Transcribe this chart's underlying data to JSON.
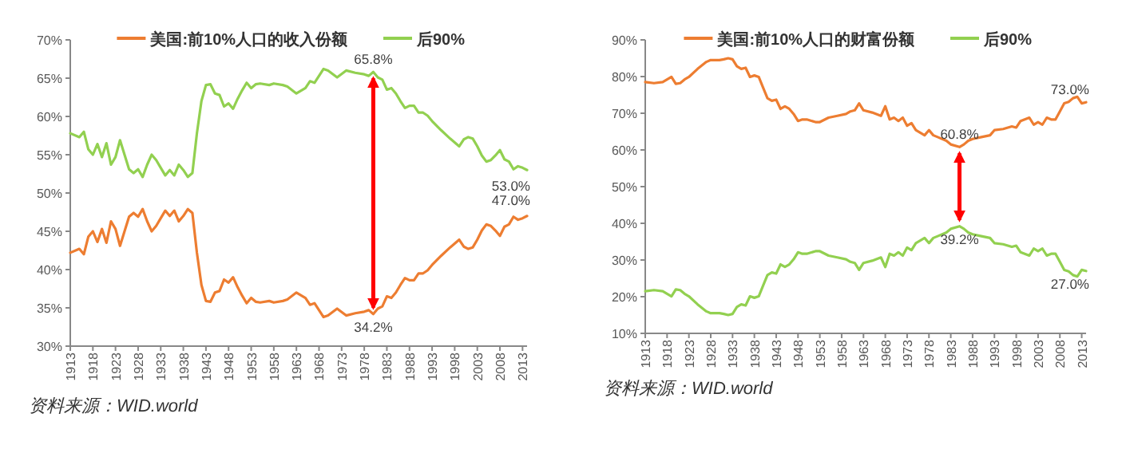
{
  "chart_data": [
    {
      "type": "line",
      "legend": "top",
      "xlim": [
        1913,
        2014
      ],
      "xticks": [
        1913,
        1918,
        1923,
        1928,
        1933,
        1938,
        1943,
        1948,
        1953,
        1958,
        1963,
        1968,
        1973,
        1978,
        1983,
        1988,
        1993,
        1998,
        2003,
        2008,
        2013
      ],
      "ylim": [
        30,
        70
      ],
      "yticks": [
        {
          "value": 30,
          "label": "30%"
        },
        {
          "value": 35,
          "label": "35%"
        },
        {
          "value": 40,
          "label": "40%"
        },
        {
          "value": 45,
          "label": "45%"
        },
        {
          "value": 50,
          "label": "50%"
        },
        {
          "value": 55,
          "label": "55%"
        },
        {
          "value": 60,
          "label": "60%"
        },
        {
          "value": 65,
          "label": "65%"
        },
        {
          "value": 70,
          "label": "70%"
        }
      ],
      "x": [
        1913,
        1915,
        1916,
        1917,
        1918,
        1919,
        1920,
        1921,
        1922,
        1923,
        1924,
        1925,
        1926,
        1927,
        1928,
        1929,
        1930,
        1931,
        1932,
        1933,
        1934,
        1935,
        1936,
        1937,
        1938,
        1939,
        1940,
        1941,
        1942,
        1943,
        1944,
        1945,
        1946,
        1947,
        1948,
        1949,
        1950,
        1951,
        1952,
        1953,
        1954,
        1955,
        1957,
        1958,
        1960,
        1961,
        1963,
        1965,
        1966,
        1967,
        1969,
        1970,
        1972,
        1974,
        1976,
        1978,
        1979,
        1980,
        1981,
        1982,
        1983,
        1984,
        1985,
        1986,
        1987,
        1988,
        1989,
        1990,
        1991,
        1992,
        1993,
        1995,
        1997,
        1999,
        2000,
        2001,
        2002,
        2003,
        2004,
        2005,
        2006,
        2007,
        2008,
        2009,
        2010,
        2011,
        2012,
        2013,
        2014
      ],
      "series": [
        {
          "name": "美国:前10%人口的收入份额",
          "color": "#ed7d31",
          "values": [
            42.2,
            42.7,
            42.0,
            44.3,
            45.0,
            43.6,
            45.3,
            43.5,
            46.3,
            45.3,
            43.1,
            45.0,
            46.9,
            47.4,
            46.9,
            47.9,
            46.3,
            45.0,
            45.7,
            46.7,
            47.7,
            47.0,
            47.7,
            46.3,
            47.0,
            47.9,
            47.4,
            42.2,
            38.0,
            35.9,
            35.8,
            37.0,
            37.2,
            38.7,
            38.3,
            39.0,
            37.7,
            36.6,
            35.6,
            36.3,
            35.8,
            35.7,
            35.9,
            35.7,
            35.9,
            36.1,
            37.0,
            36.3,
            35.4,
            35.6,
            33.8,
            34.0,
            34.9,
            34.0,
            34.3,
            34.5,
            34.7,
            34.2,
            34.9,
            35.2,
            36.5,
            36.3,
            37.0,
            38.0,
            38.9,
            38.6,
            38.6,
            39.5,
            39.5,
            39.9,
            40.6,
            41.8,
            42.9,
            43.9,
            43.0,
            42.7,
            42.9,
            43.9,
            45.1,
            45.9,
            45.7,
            45.1,
            44.4,
            45.6,
            45.9,
            46.9,
            46.5,
            46.7,
            47.0
          ]
        },
        {
          "name": "后90%",
          "color": "#92d050",
          "values": [
            57.8,
            57.3,
            58.0,
            55.7,
            55.0,
            56.4,
            54.7,
            56.5,
            53.7,
            54.7,
            56.9,
            55.0,
            53.1,
            52.6,
            53.1,
            52.1,
            53.7,
            55.0,
            54.3,
            53.3,
            52.3,
            53.0,
            52.3,
            53.7,
            53.0,
            52.1,
            52.6,
            57.8,
            62.0,
            64.1,
            64.2,
            63.0,
            62.8,
            61.3,
            61.7,
            61.0,
            62.3,
            63.4,
            64.4,
            63.7,
            64.2,
            64.3,
            64.1,
            64.3,
            64.1,
            63.9,
            63.0,
            63.7,
            64.6,
            64.4,
            66.2,
            66.0,
            65.1,
            66.0,
            65.7,
            65.5,
            65.3,
            65.8,
            65.1,
            64.8,
            63.5,
            63.7,
            63.0,
            62.0,
            61.1,
            61.4,
            61.4,
            60.5,
            60.5,
            60.1,
            59.4,
            58.2,
            57.1,
            56.1,
            57.0,
            57.3,
            57.1,
            56.1,
            54.9,
            54.1,
            54.3,
            54.9,
            55.6,
            54.4,
            54.1,
            53.1,
            53.5,
            53.3,
            53.0
          ]
        }
      ],
      "annotations": [
        {
          "text": "65.8%",
          "x": 1980,
          "y": 65.8
        },
        {
          "text": "34.2%",
          "x": 1980,
          "y": 34.2
        },
        {
          "text": "53.0%",
          "x": 2014,
          "y": 53.0
        },
        {
          "text": "47.0%",
          "x": 2014,
          "y": 47.0
        },
        "资料来源：WID.world"
      ]
    },
    {
      "type": "line",
      "legend": "top",
      "xlim": [
        1913,
        2014
      ],
      "xticks": [
        1913,
        1918,
        1923,
        1928,
        1933,
        1938,
        1943,
        1948,
        1953,
        1958,
        1963,
        1968,
        1973,
        1978,
        1983,
        1988,
        1993,
        1998,
        2003,
        2008,
        2013
      ],
      "ylim": [
        10,
        90
      ],
      "yticks": [
        {
          "value": 10,
          "label": "10%"
        },
        {
          "value": 20,
          "label": "20%"
        },
        {
          "value": 30,
          "label": "30%"
        },
        {
          "value": 40,
          "label": "40%"
        },
        {
          "value": 50,
          "label": "50%"
        },
        {
          "value": 60,
          "label": "60%"
        },
        {
          "value": 70,
          "label": "70%"
        },
        {
          "value": 80,
          "label": "80%"
        },
        {
          "value": 90,
          "label": "90%"
        }
      ],
      "x": [
        1913,
        1915,
        1917,
        1918,
        1919,
        1920,
        1921,
        1922,
        1923,
        1925,
        1927,
        1928,
        1930,
        1931,
        1932,
        1933,
        1934,
        1935,
        1936,
        1937,
        1938,
        1939,
        1940,
        1941,
        1942,
        1943,
        1944,
        1945,
        1946,
        1947,
        1948,
        1949,
        1950,
        1952,
        1953,
        1955,
        1957,
        1959,
        1960,
        1961,
        1962,
        1963,
        1965,
        1967,
        1968,
        1969,
        1970,
        1971,
        1972,
        1973,
        1974,
        1975,
        1976,
        1977,
        1978,
        1979,
        1980,
        1982,
        1983,
        1985,
        1986,
        1987,
        1988,
        1990,
        1992,
        1993,
        1995,
        1997,
        1998,
        1999,
        2001,
        2002,
        2003,
        2004,
        2005,
        2006,
        2007,
        2008,
        2009,
        2010,
        2011,
        2012,
        2013,
        2014
      ],
      "series": [
        {
          "name": "美国:前10%人口的财富份额",
          "color": "#ed7d31",
          "values": [
            78.5,
            78.2,
            78.5,
            79.2,
            79.9,
            78.0,
            78.2,
            79.2,
            79.9,
            82.1,
            84.0,
            84.5,
            84.5,
            84.7,
            85.0,
            84.7,
            82.8,
            82.1,
            82.4,
            79.9,
            80.3,
            79.9,
            77.0,
            74.1,
            73.4,
            73.7,
            71.2,
            71.9,
            71.2,
            69.8,
            67.9,
            68.3,
            68.3,
            67.6,
            67.6,
            68.8,
            69.3,
            69.8,
            70.5,
            70.8,
            72.7,
            70.8,
            70.2,
            69.3,
            71.9,
            68.3,
            68.8,
            67.9,
            68.8,
            66.6,
            67.3,
            65.4,
            64.7,
            64.0,
            65.4,
            64.0,
            63.5,
            62.5,
            61.5,
            60.8,
            61.5,
            62.5,
            63.0,
            63.5,
            64.0,
            65.4,
            65.7,
            66.4,
            66.1,
            67.9,
            68.8,
            66.9,
            67.6,
            66.9,
            68.8,
            68.3,
            68.3,
            70.5,
            72.7,
            73.1,
            74.1,
            74.5,
            72.7,
            73.0
          ]
        },
        {
          "name": "后90%",
          "color": "#92d050",
          "values": [
            21.5,
            21.8,
            21.5,
            20.8,
            20.1,
            22.0,
            21.8,
            20.8,
            20.1,
            17.9,
            16.0,
            15.5,
            15.5,
            15.3,
            15.0,
            15.3,
            17.2,
            17.9,
            17.6,
            20.1,
            19.7,
            20.1,
            23.0,
            25.9,
            26.6,
            26.3,
            28.8,
            28.1,
            28.8,
            30.2,
            32.1,
            31.7,
            31.7,
            32.4,
            32.4,
            31.2,
            30.7,
            30.2,
            29.5,
            29.2,
            27.3,
            29.2,
            29.8,
            30.7,
            28.1,
            31.7,
            31.2,
            32.1,
            31.2,
            33.4,
            32.7,
            34.6,
            35.3,
            36.0,
            34.6,
            36.0,
            36.5,
            37.5,
            38.5,
            39.2,
            38.5,
            37.5,
            37.0,
            36.5,
            36.0,
            34.6,
            34.3,
            33.6,
            33.9,
            32.1,
            31.2,
            33.1,
            32.4,
            33.1,
            31.2,
            31.7,
            31.7,
            29.5,
            27.3,
            26.9,
            25.9,
            25.5,
            27.3,
            27.0
          ]
        }
      ],
      "annotations": [
        {
          "text": "73.0%",
          "x": 2014,
          "y": 73.0
        },
        {
          "text": "60.8%",
          "x": 1985,
          "y": 60.8
        },
        {
          "text": "39.2%",
          "x": 1985,
          "y": 39.2
        },
        {
          "text": "27.0%",
          "x": 2014,
          "y": 27.0
        },
        "资料来源：WID.world"
      ]
    }
  ]
}
